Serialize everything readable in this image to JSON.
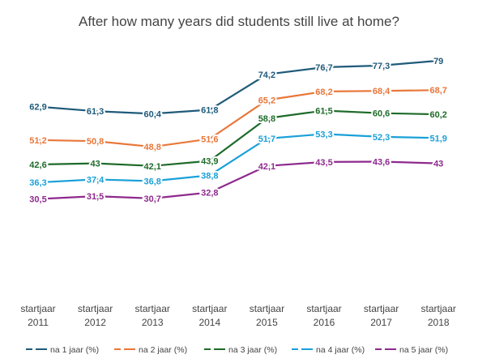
{
  "chart_data": {
    "type": "line",
    "title": "After how many years did students still live at home?",
    "categories": [
      [
        "startjaar",
        "2011"
      ],
      [
        "startjaar",
        "2012"
      ],
      [
        "startjaar",
        "2013"
      ],
      [
        "startjaar",
        "2014"
      ],
      [
        "startjaar",
        "2015"
      ],
      [
        "startjaar",
        "2016"
      ],
      [
        "startjaar",
        "2017"
      ],
      [
        "startjaar",
        "2018"
      ]
    ],
    "series": [
      {
        "name": "na 1 jaar (%)",
        "color": "#1f5a7a",
        "values": [
          62.9,
          61.3,
          60.4,
          61.8,
          74.2,
          76.7,
          77.3,
          79
        ],
        "labels": [
          "62,9",
          "61,3",
          "60,4",
          "61,8",
          "74,2",
          "76,7",
          "77,3",
          "79"
        ]
      },
      {
        "name": "na 2 jaar (%)",
        "color": "#e8773a",
        "values": [
          51.2,
          50.8,
          48.8,
          51.6,
          65.2,
          68.2,
          68.4,
          68.7
        ],
        "labels": [
          "51,2",
          "50,8",
          "48,8",
          "51,6",
          "65,2",
          "68,2",
          "68,4",
          "68,7"
        ]
      },
      {
        "name": "na 3 jaar (%)",
        "color": "#1e6b2a",
        "values": [
          42.6,
          43,
          42.1,
          43.9,
          58.8,
          61.5,
          60.6,
          60.2
        ],
        "labels": [
          "42,6",
          "43",
          "42,1",
          "43,9",
          "58,8",
          "61,5",
          "60,6",
          "60,2"
        ]
      },
      {
        "name": "na 4 jaar (%)",
        "color": "#1aa0d8",
        "values": [
          36.3,
          37.4,
          36.8,
          38.8,
          51.7,
          53.3,
          52.3,
          51.9
        ],
        "labels": [
          "36,3",
          "37,4",
          "36,8",
          "38,8",
          "51,7",
          "53,3",
          "52,3",
          "51,9"
        ]
      },
      {
        "name": "na 5 jaar (%)",
        "color": "#8e2a8e",
        "values": [
          30.5,
          31.5,
          30.7,
          32.8,
          42.1,
          43.5,
          43.6,
          43
        ],
        "labels": [
          "30,5",
          "31,5",
          "30,7",
          "32,8",
          "42,1",
          "43,5",
          "43,6",
          "43"
        ]
      }
    ],
    "xlabel": "",
    "ylabel": "",
    "ylim": [
      0,
      90
    ],
    "grid": false,
    "legend": "bottom"
  }
}
